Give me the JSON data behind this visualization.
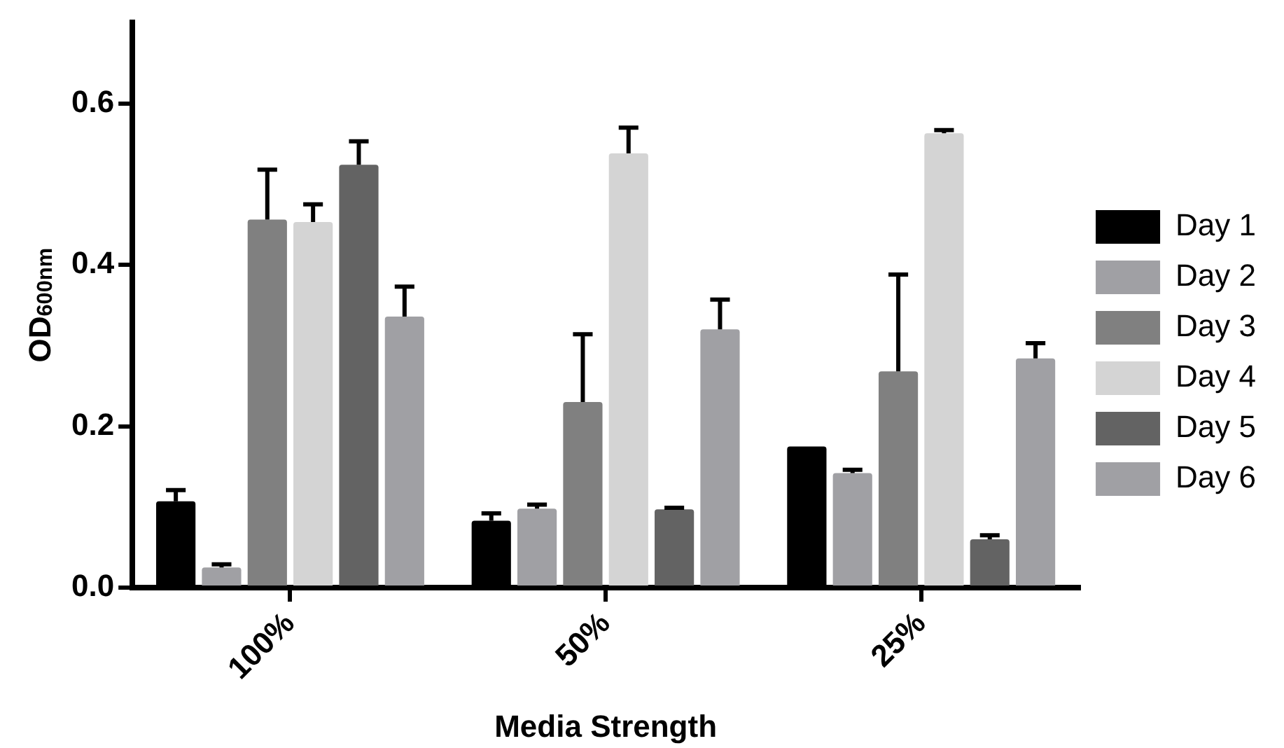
{
  "chart_data": {
    "type": "bar",
    "xlabel": "Media Strength",
    "ylabel": "OD$_{600nm}$",
    "categories": [
      "100%",
      "50%",
      "25%"
    ],
    "series": [
      {
        "name": "Day 1",
        "color": "#000000",
        "values": [
          0.107,
          0.083,
          0.175
        ],
        "errors": [
          [
            0.107,
            0.121
          ],
          [
            0.083,
            0.092
          ],
          null
        ]
      },
      {
        "name": "Day 2",
        "color": "#a0a0a4",
        "values": [
          0.025,
          0.098,
          0.142
        ],
        "errors": [
          [
            0.025,
            0.029
          ],
          [
            0.098,
            0.103
          ],
          [
            0.142,
            0.146
          ]
        ]
      },
      {
        "name": "Day 3",
        "color": "#808080",
        "values": [
          0.456,
          0.23,
          0.268
        ],
        "errors": [
          [
            0.456,
            0.518
          ],
          [
            0.23,
            0.314
          ],
          [
            0.268,
            0.388
          ]
        ]
      },
      {
        "name": "Day 4",
        "color": "#d4d4d4",
        "values": [
          0.453,
          0.538,
          0.563
        ],
        "errors": [
          [
            0.453,
            0.475
          ],
          [
            0.538,
            0.57
          ],
          [
            0.563,
            0.567
          ]
        ]
      },
      {
        "name": "Day 5",
        "color": "#636363",
        "values": [
          0.524,
          0.097,
          0.06
        ],
        "errors": [
          [
            0.524,
            0.553
          ],
          [
            0.097,
            0.099
          ],
          [
            0.06,
            0.065
          ]
        ]
      },
      {
        "name": "Day 6",
        "color": "#a0a0a4",
        "values": [
          0.336,
          0.32,
          0.284
        ],
        "errors": [
          [
            0.336,
            0.373
          ],
          [
            0.32,
            0.357
          ],
          [
            0.284,
            0.303
          ]
        ]
      }
    ],
    "ylim": [
      0,
      0.7
    ],
    "yticks": [
      {
        "value": 0,
        "label": "0.0"
      },
      {
        "value": 0.2,
        "label": "0.2"
      },
      {
        "value": 0.4,
        "label": "0.4"
      },
      {
        "value": 0.6,
        "label": "0.6"
      }
    ],
    "grid": false,
    "legend": "right"
  }
}
